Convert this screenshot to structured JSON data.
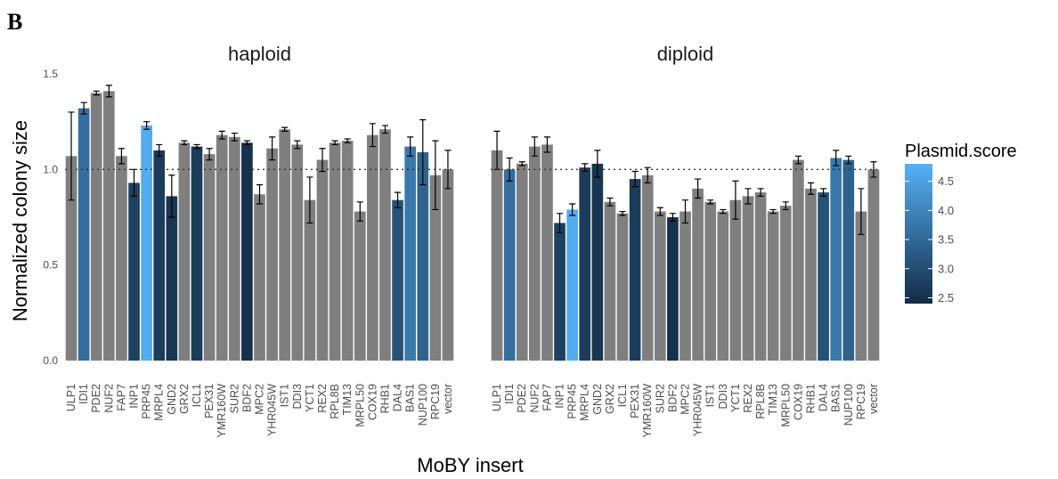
{
  "panel_label": "B",
  "chart_data": {
    "type": "bar",
    "ylabel": "Normalized colony size",
    "xlabel": "MoBY insert",
    "ylim": [
      0,
      1.55
    ],
    "yticks": [
      "0.0",
      "0.5",
      "1.0",
      "1.5"
    ],
    "reference_line": 1.0,
    "grid": false,
    "legend": {
      "title": "Plasmid.score",
      "placement": "right",
      "range": [
        2.4,
        4.8
      ],
      "ticks": [
        "2.5",
        "3.0",
        "3.5",
        "4.0",
        "4.5"
      ],
      "color_low": "#132B43",
      "color_high": "#56B1F7",
      "na_color": "#7f7f7f"
    },
    "facets": [
      {
        "title": "haploid",
        "categories": [
          "ULP1",
          "IDI1",
          "PDE2",
          "NUF2",
          "FAP7",
          "INP1",
          "PRP45",
          "MRPL4",
          "GND2",
          "GRX2",
          "ICL1",
          "PEX31",
          "YMR160W",
          "SUR2",
          "BDF2",
          "MPC2",
          "YHR045W",
          "IST1",
          "DDI3",
          "YCT1",
          "REX2",
          "RPL8B",
          "TIM13",
          "MRPL50",
          "COX19",
          "RHB1",
          "DAL4",
          "BAS1",
          "NUP100",
          "RPC19",
          "vector"
        ],
        "values": [
          1.07,
          1.32,
          1.4,
          1.41,
          1.07,
          0.93,
          1.23,
          1.1,
          0.86,
          1.14,
          1.12,
          1.08,
          1.18,
          1.17,
          1.14,
          0.87,
          1.11,
          1.21,
          1.13,
          0.84,
          1.05,
          1.14,
          1.15,
          0.78,
          1.18,
          1.21,
          0.84,
          1.12,
          1.09,
          0.97,
          1.0
        ],
        "errors": [
          0.23,
          0.03,
          0.01,
          0.03,
          0.04,
          0.07,
          0.02,
          0.03,
          0.11,
          0.01,
          0.01,
          0.03,
          0.02,
          0.02,
          0.01,
          0.05,
          0.06,
          0.01,
          0.02,
          0.12,
          0.06,
          0.01,
          0.01,
          0.05,
          0.06,
          0.02,
          0.04,
          0.05,
          0.17,
          0.18,
          0.1
        ],
        "scores": [
          null,
          3.6,
          null,
          null,
          null,
          2.8,
          4.7,
          2.7,
          2.6,
          null,
          2.7,
          null,
          null,
          null,
          2.5,
          null,
          null,
          null,
          null,
          null,
          null,
          null,
          null,
          null,
          null,
          null,
          3.1,
          3.8,
          3.4,
          null,
          null
        ]
      },
      {
        "title": "diploid",
        "categories": [
          "ULP1",
          "IDI1",
          "PDE2",
          "NUF2",
          "FAP7",
          "INP1",
          "PRP45",
          "MRPL4",
          "GND2",
          "GRX2",
          "ICL1",
          "PEX31",
          "YMR160W",
          "SUR2",
          "BDF2",
          "MPC2",
          "YHR045W",
          "IST1",
          "DDI3",
          "YCT1",
          "REX2",
          "RPL8B",
          "TIM13",
          "MRPL50",
          "COX19",
          "RHB1",
          "DAL4",
          "BAS1",
          "NUP100",
          "RPC19",
          "vector"
        ],
        "values": [
          1.1,
          1.0,
          1.03,
          1.12,
          1.13,
          0.72,
          0.79,
          1.01,
          1.03,
          0.83,
          0.77,
          0.95,
          0.97,
          0.78,
          0.75,
          0.78,
          0.9,
          0.83,
          0.78,
          0.84,
          0.86,
          0.88,
          0.78,
          0.81,
          1.05,
          0.9,
          0.88,
          1.06,
          1.05,
          0.78,
          1.0
        ],
        "errors": [
          0.1,
          0.06,
          0.01,
          0.05,
          0.04,
          0.05,
          0.03,
          0.02,
          0.07,
          0.02,
          0.01,
          0.04,
          0.04,
          0.02,
          0.02,
          0.06,
          0.05,
          0.01,
          0.01,
          0.1,
          0.04,
          0.02,
          0.01,
          0.02,
          0.02,
          0.03,
          0.02,
          0.04,
          0.02,
          0.12,
          0.04
        ],
        "scores": [
          null,
          3.6,
          null,
          null,
          null,
          2.8,
          4.7,
          2.7,
          2.6,
          null,
          null,
          2.7,
          null,
          null,
          2.5,
          null,
          null,
          null,
          null,
          null,
          null,
          null,
          null,
          null,
          null,
          null,
          3.1,
          3.8,
          3.4,
          null,
          null
        ]
      }
    ]
  }
}
